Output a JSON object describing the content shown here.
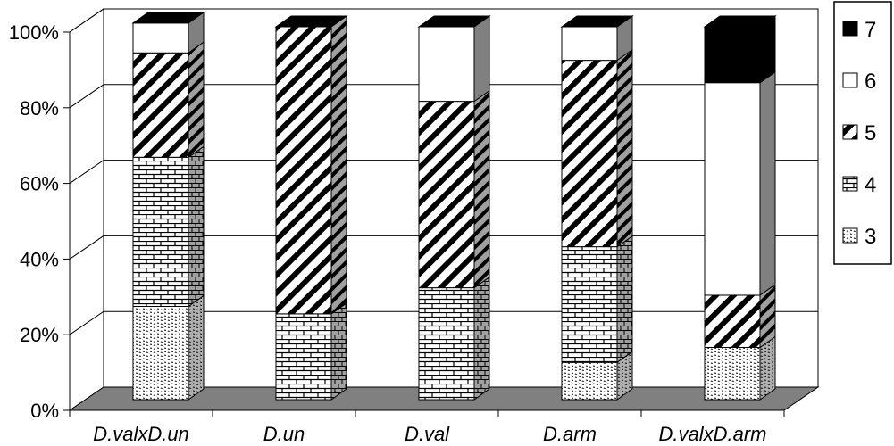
{
  "chart_data": {
    "type": "bar",
    "stacked": true,
    "percent": true,
    "three_d": true,
    "categories": [
      "D.valxD.un",
      "D.un",
      "D.val",
      "D.arm",
      "D.valxD.arm"
    ],
    "series": [
      {
        "name": "3",
        "values": [
          25,
          0,
          0,
          10,
          14
        ],
        "pattern": "dotted"
      },
      {
        "name": "4",
        "values": [
          40,
          23,
          30,
          31,
          0
        ],
        "pattern": "brick"
      },
      {
        "name": "5",
        "values": [
          28,
          77,
          50,
          50,
          14
        ],
        "pattern": "diagonal"
      },
      {
        "name": "6",
        "values": [
          8,
          0,
          20,
          9,
          57
        ],
        "pattern": "white"
      },
      {
        "name": "7",
        "values": [
          0,
          0,
          0,
          0,
          15
        ],
        "pattern": "black"
      }
    ],
    "ylim": [
      0,
      100
    ],
    "yticks": [
      "0%",
      "20%",
      "40%",
      "60%",
      "80%",
      "100%"
    ],
    "legend_position": "right",
    "grid": true,
    "colors": {
      "floor": "#808080",
      "wall": "#ffffff",
      "line": "#000000",
      "side": "#808080",
      "top": "#000000"
    }
  }
}
